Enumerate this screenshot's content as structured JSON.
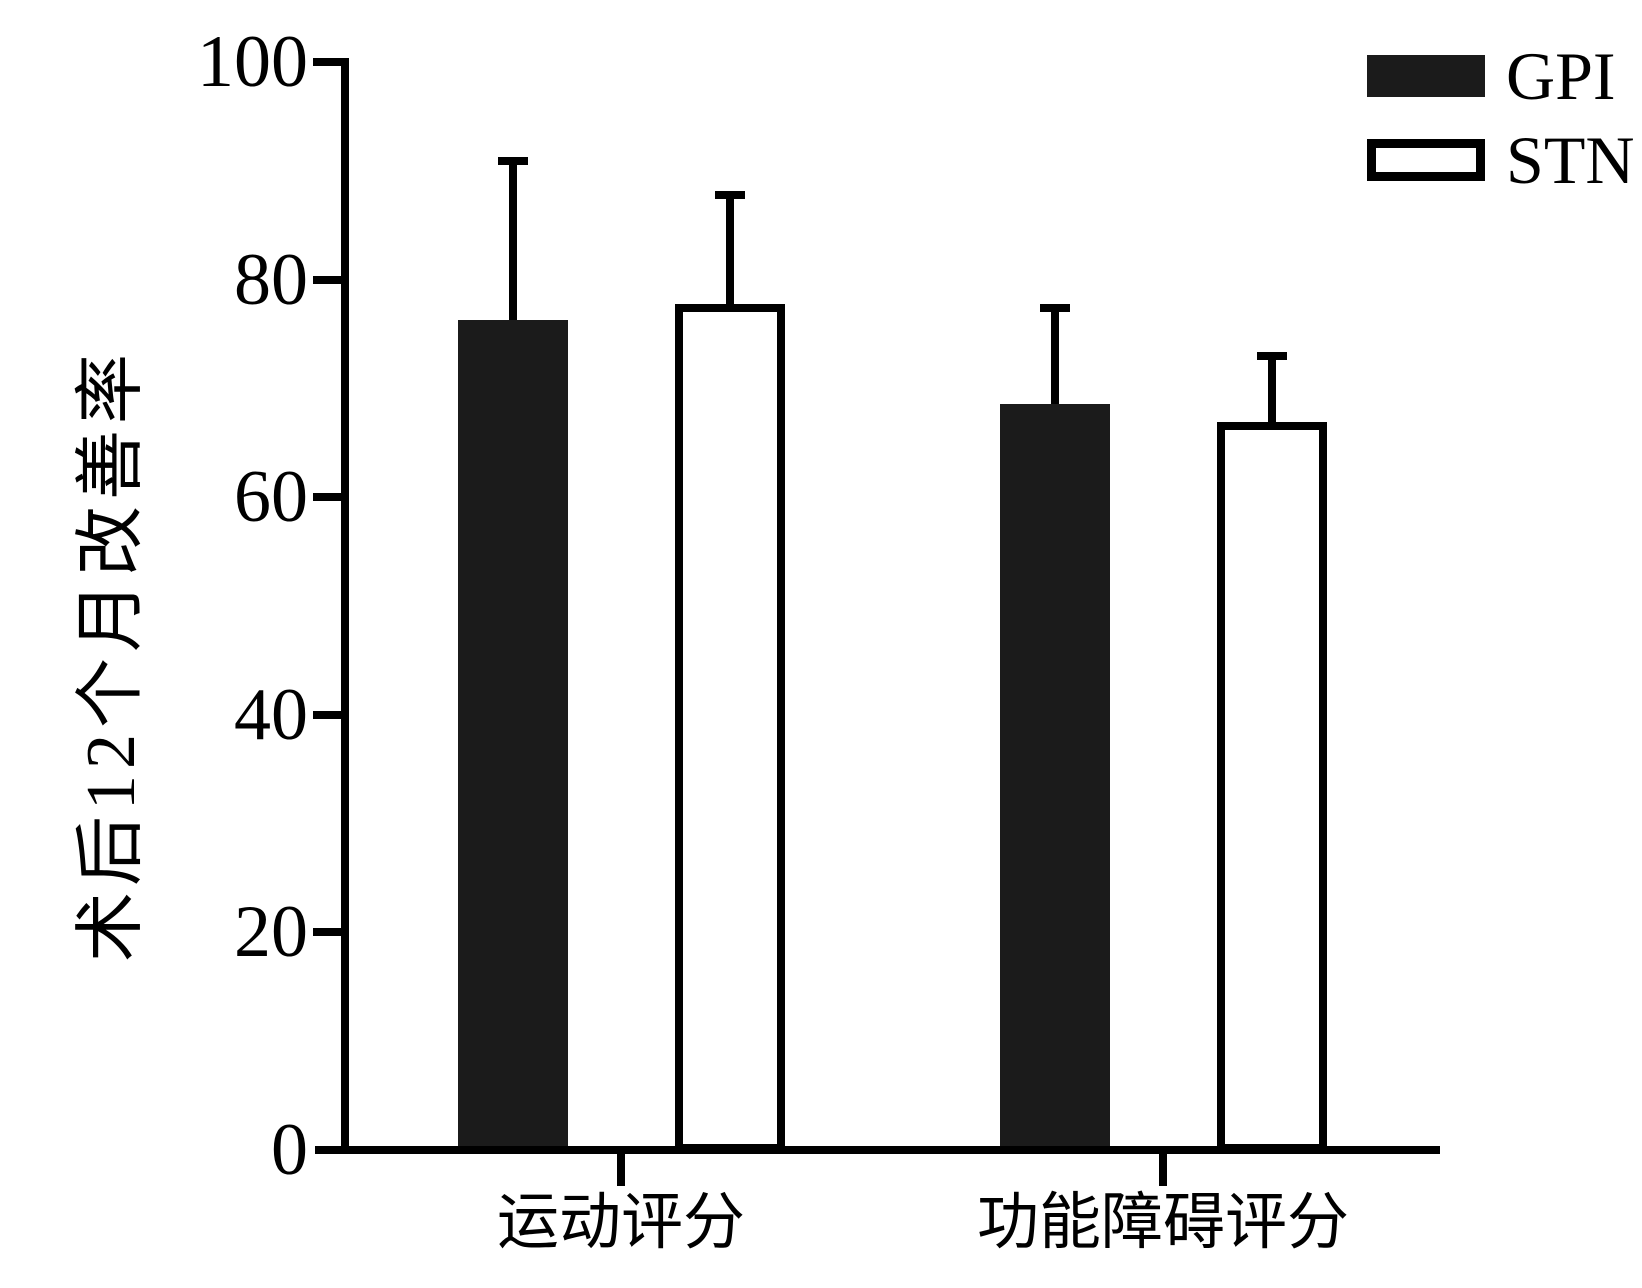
{
  "chart_data": {
    "type": "bar",
    "title": "",
    "categories": [
      "运动评分",
      "功能障碍评分"
    ],
    "series": [
      {
        "name": "GPI",
        "style": "filled-black",
        "values": [
          76.3,
          68.6
        ],
        "errors_upper": [
          15.0,
          9.2
        ]
      },
      {
        "name": "STN",
        "style": "outlined-white",
        "values": [
          77.8,
          66.9
        ],
        "errors_upper": [
          10.3,
          6.4
        ]
      }
    ],
    "ylabel": "术后12个月改善率",
    "xlabel": "",
    "ylim": [
      0,
      100
    ],
    "yticks": [
      0,
      20,
      40,
      60,
      80,
      100
    ],
    "grid": false,
    "error_bars": "upper-only-sd",
    "legend_position": "top-right",
    "colors": {
      "bar_fill": "#1b1b1b",
      "bar_outline": "#000000",
      "axis_and_text": "#000000",
      "background": "#ffffff"
    }
  }
}
